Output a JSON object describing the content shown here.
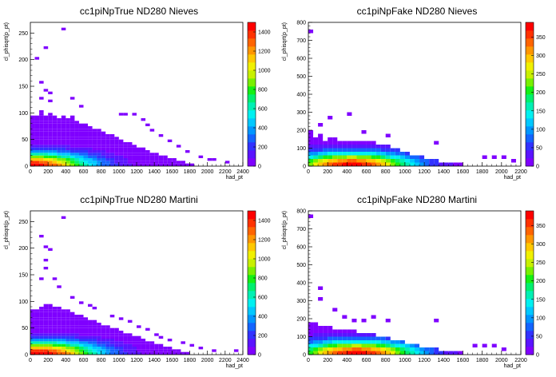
{
  "chart_data": [
    {
      "type": "heatmap",
      "title": "cc1piNpTrue ND280 Nieves",
      "xlabel": "had_pt",
      "ylabel": "cl_phisqrt(p_pt)",
      "xlim": [
        0,
        2400
      ],
      "ylim": [
        0,
        270
      ],
      "x_ticks": [
        0,
        200,
        400,
        600,
        800,
        1000,
        1200,
        1400,
        1600,
        1800,
        2000,
        2200,
        2400
      ],
      "y_ticks": [
        0,
        50,
        100,
        150,
        200,
        250
      ],
      "z_max": 1500,
      "z_ticks": [
        0,
        200,
        400,
        600,
        800,
        1000,
        1200,
        1400
      ],
      "bin_width_x": 50,
      "bin_width_y": 5,
      "profile": [
        [
          0,
          95
        ],
        [
          50,
          95
        ],
        [
          100,
          105
        ],
        [
          150,
          95
        ],
        [
          200,
          100
        ],
        [
          250,
          95
        ],
        [
          300,
          90
        ],
        [
          350,
          95
        ],
        [
          400,
          90
        ],
        [
          450,
          95
        ],
        [
          500,
          85
        ],
        [
          550,
          80
        ],
        [
          600,
          80
        ],
        [
          650,
          75
        ],
        [
          700,
          70
        ],
        [
          750,
          70
        ],
        [
          800,
          65
        ],
        [
          850,
          60
        ],
        [
          900,
          60
        ],
        [
          950,
          55
        ],
        [
          1000,
          50
        ],
        [
          1050,
          45
        ],
        [
          1100,
          45
        ],
        [
          1150,
          40
        ],
        [
          1200,
          35
        ],
        [
          1250,
          35
        ],
        [
          1300,
          30
        ],
        [
          1350,
          25
        ],
        [
          1400,
          25
        ],
        [
          1450,
          20
        ],
        [
          1500,
          20
        ],
        [
          1550,
          15
        ],
        [
          1600,
          15
        ],
        [
          1650,
          10
        ],
        [
          1700,
          10
        ],
        [
          1750,
          5
        ],
        [
          1800,
          5
        ],
        [
          1850,
          0
        ]
      ],
      "outliers": [
        [
          350,
          255
        ],
        [
          150,
          220
        ],
        [
          50,
          200
        ],
        [
          100,
          155
        ],
        [
          150,
          140
        ],
        [
          200,
          135
        ],
        [
          100,
          125
        ],
        [
          200,
          120
        ],
        [
          450,
          125
        ],
        [
          550,
          110
        ],
        [
          1000,
          95
        ],
        [
          1050,
          95
        ],
        [
          1150,
          95
        ],
        [
          1250,
          85
        ],
        [
          1300,
          75
        ],
        [
          1350,
          65
        ],
        [
          1450,
          55
        ],
        [
          1550,
          45
        ],
        [
          1650,
          35
        ],
        [
          1750,
          25
        ],
        [
          1900,
          15
        ],
        [
          2000,
          10
        ],
        [
          2050,
          10
        ],
        [
          2200,
          5
        ]
      ],
      "peak": [
        0,
        1500
      ]
    },
    {
      "type": "heatmap",
      "title": "cc1piNpFake ND280 Nieves",
      "xlabel": "had_pt",
      "ylabel": "cl_phisqrt(p_pt)",
      "xlim": [
        0,
        2200
      ],
      "ylim": [
        0,
        800
      ],
      "x_ticks": [
        0,
        200,
        400,
        600,
        800,
        1000,
        1200,
        1400,
        1600,
        1800,
        2000,
        2200
      ],
      "y_ticks": [
        0,
        100,
        200,
        300,
        400,
        500,
        600,
        700,
        800
      ],
      "z_max": 390,
      "z_ticks": [
        0,
        50,
        100,
        150,
        200,
        250,
        300,
        350
      ],
      "bin_width_x": 50,
      "bin_width_y": 20,
      "profile": [
        [
          0,
          200
        ],
        [
          50,
          160
        ],
        [
          100,
          180
        ],
        [
          150,
          140
        ],
        [
          200,
          160
        ],
        [
          250,
          150
        ],
        [
          300,
          140
        ],
        [
          350,
          140
        ],
        [
          400,
          140
        ],
        [
          450,
          140
        ],
        [
          500,
          140
        ],
        [
          550,
          140
        ],
        [
          600,
          130
        ],
        [
          650,
          130
        ],
        [
          700,
          120
        ],
        [
          750,
          120
        ],
        [
          800,
          120
        ],
        [
          850,
          100
        ],
        [
          900,
          100
        ],
        [
          950,
          80
        ],
        [
          1000,
          80
        ],
        [
          1050,
          60
        ],
        [
          1100,
          60
        ],
        [
          1150,
          60
        ],
        [
          1200,
          40
        ],
        [
          1250,
          40
        ],
        [
          1300,
          40
        ],
        [
          1350,
          20
        ],
        [
          1400,
          20
        ],
        [
          1450,
          20
        ],
        [
          1500,
          20
        ],
        [
          1550,
          20
        ],
        [
          1600,
          0
        ]
      ],
      "outliers": [
        [
          0,
          740
        ],
        [
          200,
          260
        ],
        [
          400,
          280
        ],
        [
          100,
          220
        ],
        [
          550,
          180
        ],
        [
          800,
          160
        ],
        [
          1300,
          120
        ],
        [
          1800,
          40
        ],
        [
          1900,
          40
        ],
        [
          2000,
          40
        ],
        [
          2100,
          20
        ]
      ],
      "peak": [
        450,
        390
      ]
    },
    {
      "type": "heatmap",
      "title": "cc1piNpTrue ND280 Martini",
      "xlabel": "had_pt",
      "ylabel": "cl_phisqrt(p_pt)",
      "xlim": [
        0,
        2400
      ],
      "ylim": [
        0,
        270
      ],
      "x_ticks": [
        0,
        200,
        400,
        600,
        800,
        1000,
        1200,
        1400,
        1600,
        1800,
        2000,
        2200,
        2400
      ],
      "y_ticks": [
        0,
        50,
        100,
        150,
        200,
        250
      ],
      "z_max": 1500,
      "z_ticks": [
        0,
        200,
        400,
        600,
        800,
        1000,
        1200,
        1400
      ],
      "bin_width_x": 50,
      "bin_width_y": 5,
      "profile": [
        [
          0,
          85
        ],
        [
          50,
          85
        ],
        [
          100,
          90
        ],
        [
          150,
          95
        ],
        [
          200,
          95
        ],
        [
          250,
          90
        ],
        [
          300,
          90
        ],
        [
          350,
          85
        ],
        [
          400,
          85
        ],
        [
          450,
          80
        ],
        [
          500,
          75
        ],
        [
          550,
          75
        ],
        [
          600,
          70
        ],
        [
          650,
          65
        ],
        [
          700,
          65
        ],
        [
          750,
          60
        ],
        [
          800,
          55
        ],
        [
          850,
          55
        ],
        [
          900,
          50
        ],
        [
          950,
          50
        ],
        [
          1000,
          45
        ],
        [
          1050,
          40
        ],
        [
          1100,
          40
        ],
        [
          1150,
          35
        ],
        [
          1200,
          35
        ],
        [
          1250,
          30
        ],
        [
          1300,
          25
        ],
        [
          1350,
          25
        ],
        [
          1400,
          20
        ],
        [
          1450,
          20
        ],
        [
          1500,
          15
        ],
        [
          1550,
          15
        ],
        [
          1600,
          10
        ],
        [
          1650,
          10
        ],
        [
          1700,
          5
        ],
        [
          1750,
          5
        ],
        [
          1800,
          0
        ]
      ],
      "outliers": [
        [
          350,
          255
        ],
        [
          100,
          220
        ],
        [
          150,
          200
        ],
        [
          200,
          195
        ],
        [
          150,
          175
        ],
        [
          150,
          160
        ],
        [
          100,
          140
        ],
        [
          250,
          140
        ],
        [
          300,
          125
        ],
        [
          450,
          105
        ],
        [
          550,
          95
        ],
        [
          650,
          90
        ],
        [
          700,
          85
        ],
        [
          900,
          70
        ],
        [
          1000,
          65
        ],
        [
          1100,
          60
        ],
        [
          1200,
          50
        ],
        [
          1300,
          45
        ],
        [
          1400,
          35
        ],
        [
          1450,
          30
        ],
        [
          1550,
          25
        ],
        [
          1700,
          20
        ],
        [
          1800,
          15
        ],
        [
          1900,
          10
        ],
        [
          2050,
          5
        ],
        [
          2300,
          5
        ]
      ],
      "peak": [
        100,
        1500
      ]
    },
    {
      "type": "heatmap",
      "title": "cc1piNpFake ND280 Martini",
      "xlabel": "had_pt",
      "ylabel": "cl_phisqrt(p_pt)",
      "xlim": [
        0,
        2200
      ],
      "ylim": [
        0,
        800
      ],
      "x_ticks": [
        0,
        200,
        400,
        600,
        800,
        1000,
        1200,
        1400,
        1600,
        1800,
        2000,
        2200
      ],
      "y_ticks": [
        0,
        100,
        200,
        300,
        400,
        500,
        600,
        700,
        800
      ],
      "z_max": 390,
      "z_ticks": [
        0,
        50,
        100,
        150,
        200,
        250,
        300,
        350
      ],
      "bin_width_x": 50,
      "bin_width_y": 20,
      "profile": [
        [
          0,
          180
        ],
        [
          50,
          180
        ],
        [
          100,
          160
        ],
        [
          150,
          160
        ],
        [
          200,
          160
        ],
        [
          250,
          140
        ],
        [
          300,
          140
        ],
        [
          350,
          140
        ],
        [
          400,
          140
        ],
        [
          450,
          140
        ],
        [
          500,
          120
        ],
        [
          550,
          120
        ],
        [
          600,
          120
        ],
        [
          650,
          120
        ],
        [
          700,
          100
        ],
        [
          750,
          100
        ],
        [
          800,
          100
        ],
        [
          850,
          80
        ],
        [
          900,
          80
        ],
        [
          950,
          80
        ],
        [
          1000,
          60
        ],
        [
          1050,
          60
        ],
        [
          1100,
          60
        ],
        [
          1150,
          40
        ],
        [
          1200,
          40
        ],
        [
          1250,
          40
        ],
        [
          1300,
          40
        ],
        [
          1350,
          20
        ],
        [
          1400,
          20
        ],
        [
          1450,
          20
        ],
        [
          1500,
          20
        ],
        [
          1550,
          20
        ],
        [
          1600,
          0
        ]
      ],
      "outliers": [
        [
          0,
          760
        ],
        [
          100,
          360
        ],
        [
          100,
          300
        ],
        [
          250,
          240
        ],
        [
          350,
          200
        ],
        [
          450,
          180
        ],
        [
          550,
          180
        ],
        [
          650,
          200
        ],
        [
          800,
          180
        ],
        [
          1300,
          180
        ],
        [
          1700,
          40
        ],
        [
          1800,
          40
        ],
        [
          1900,
          40
        ],
        [
          2000,
          20
        ]
      ],
      "peak": [
        500,
        390
      ]
    }
  ]
}
